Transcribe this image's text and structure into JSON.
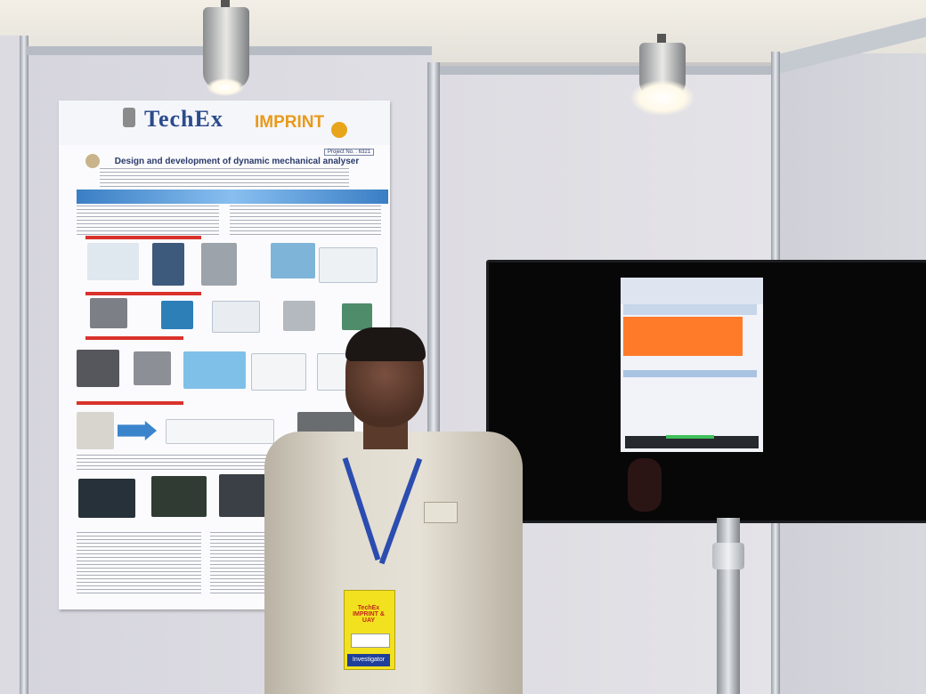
{
  "scene": {
    "description_tags": [
      "exhibition-booth",
      "poster",
      "monitor",
      "presenter"
    ]
  },
  "poster": {
    "logo_text": "TechEx",
    "brand_text": "IMPRINT",
    "project_no": "Project No. : 6321",
    "title": "Design and development of dynamic mechanical analyser"
  },
  "badge": {
    "event": "TechEx IMPRINT & UAY",
    "role": "Investigator"
  },
  "colors": {
    "poster_band": "#3a7ec4",
    "screen_orange": "#ff7a29",
    "lanyard": "#2b4db0",
    "badge": "#f2e11f"
  }
}
